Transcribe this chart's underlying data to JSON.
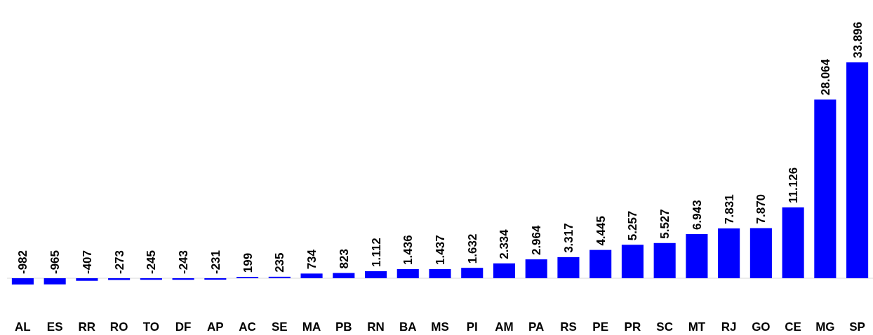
{
  "chart_data": {
    "type": "bar",
    "categories": [
      "AL",
      "ES",
      "RR",
      "RO",
      "TO",
      "DF",
      "AP",
      "AC",
      "SE",
      "MA",
      "PB",
      "RN",
      "BA",
      "MS",
      "PI",
      "AM",
      "PA",
      "RS",
      "PE",
      "PR",
      "SC",
      "MT",
      "RJ",
      "GO",
      "CE",
      "MG",
      "SP"
    ],
    "values": [
      -982,
      -965,
      -407,
      -273,
      -245,
      -243,
      -231,
      199,
      235,
      734,
      823,
      1112,
      1436,
      1437,
      1632,
      2334,
      2964,
      3317,
      4445,
      5257,
      5527,
      6943,
      7831,
      7870,
      11126,
      28064,
      33896
    ],
    "value_labels": [
      "-982",
      "-965",
      "-407",
      "-273",
      "-245",
      "-243",
      "-231",
      "199",
      "235",
      "734",
      "823",
      "1.112",
      "1.436",
      "1.437",
      "1.632",
      "2.334",
      "2.964",
      "3.317",
      "4.445",
      "5.257",
      "5.527",
      "6.943",
      "7.831",
      "7.870",
      "11.126",
      "28.064",
      "33.896"
    ],
    "color": "#0000ff"
  }
}
